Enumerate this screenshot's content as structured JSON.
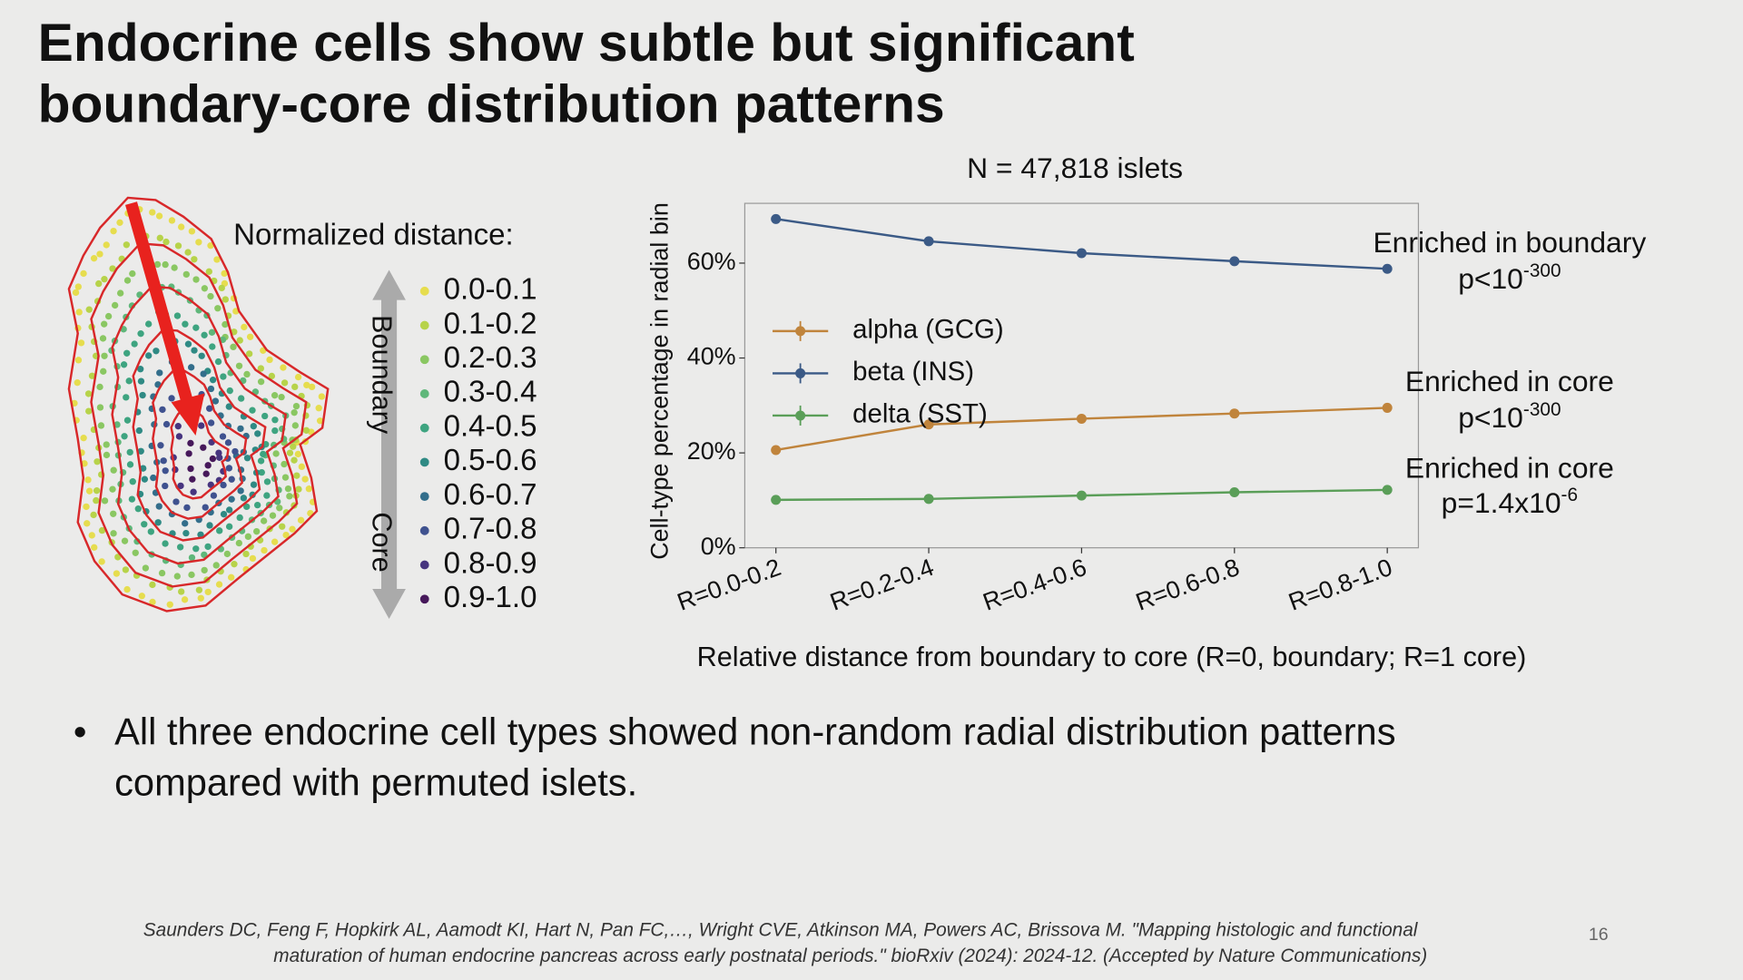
{
  "slide": {
    "title": [
      "Endocrine cells show subtle but significant",
      "boundary-core distribution patterns"
    ],
    "bullet": [
      "All three endocrine cell types showed non-random radial distribution patterns",
      "compared with permuted islets."
    ],
    "citation": [
      "Saunders DC, Feng F, Hopkirk AL, Aamodt KI, Hart N, Pan FC,…, Wright CVE, Atkinson MA, Powers AC, Brissova M. \"Mapping histologic and functional",
      "maturation of human endocrine pancreas across early postnatal periods.\" bioRxiv (2024): 2024-12. (Accepted by Nature Communications)"
    ],
    "page_number": "16"
  },
  "islet_legend": {
    "title": "Normalized distance:",
    "labels": [
      "0.0-0.1",
      "0.1-0.2",
      "0.2-0.3",
      "0.3-0.4",
      "0.4-0.5",
      "0.5-0.6",
      "0.6-0.7",
      "0.7-0.8",
      "0.8-0.9",
      "0.9-1.0"
    ],
    "colors": [
      "#e6dd4e",
      "#b7d34a",
      "#8ac762",
      "#5fb77a",
      "#3ea480",
      "#2f8a84",
      "#336e8b",
      "#3f528f",
      "#47357f",
      "#46185a"
    ],
    "boundary": "Boundary",
    "core": "Core"
  },
  "chart_data": {
    "type": "line",
    "title": "N = 47,818 islets",
    "x_label": "Relative distance from boundary to core (R=0, boundary; R=1 core)",
    "y_label": "Cell-type percentage in radial bin",
    "categories": [
      "R=0.0-0.2",
      "R=0.2-0.4",
      "R=0.4-0.6",
      "R=0.6-0.8",
      "R=0.8-1.0"
    ],
    "series": [
      {
        "name": "alpha (GCG)",
        "color": "#c0843c",
        "values": [
          20.6,
          26.0,
          27.2,
          28.3,
          29.5
        ]
      },
      {
        "name": "beta (INS)",
        "color": "#3b5a86",
        "values": [
          69.3,
          64.6,
          62.1,
          60.4,
          58.8
        ]
      },
      {
        "name": "delta (SST)",
        "color": "#5a9e58",
        "values": [
          10.1,
          10.3,
          11.0,
          11.7,
          12.2
        ]
      }
    ],
    "ylim": [
      0,
      72.6
    ],
    "yticks": [
      {
        "value": 0,
        "label": "0%"
      },
      {
        "value": 20,
        "label": "20%"
      },
      {
        "value": 40,
        "label": "40%"
      },
      {
        "value": 60,
        "label": "60%"
      }
    ],
    "grid": false,
    "legend": "upper left",
    "annotations": [
      {
        "text": "Enriched in boundary",
        "p": "p<10",
        "exponent": "-300"
      },
      {
        "text": "Enriched in core",
        "p": "p<10",
        "exponent": "-300"
      },
      {
        "text": "Enriched in core",
        "p": "p=1.4x10",
        "exponent": "-6"
      }
    ]
  }
}
